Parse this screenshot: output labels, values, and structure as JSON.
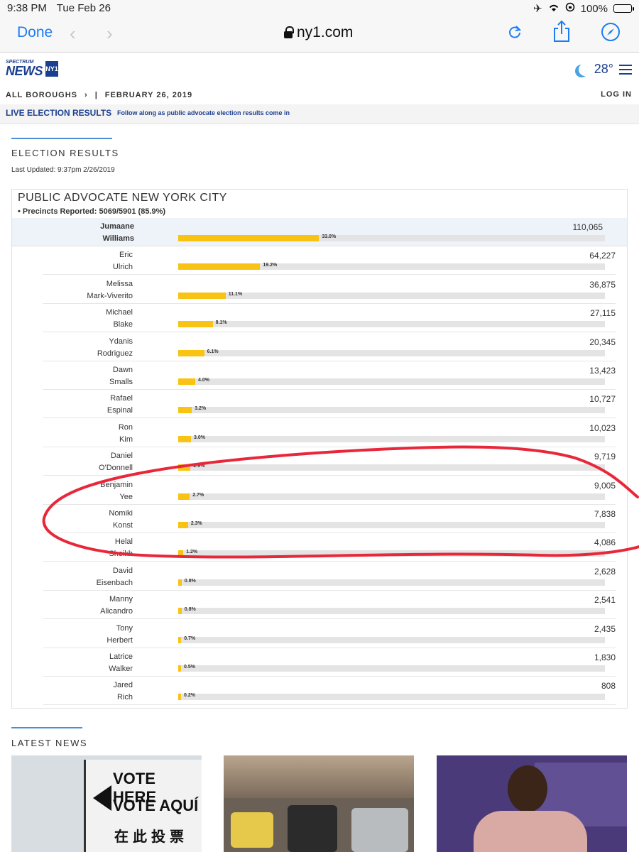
{
  "status_bar": {
    "time": "9:38 PM",
    "date": "Tue Feb 26",
    "battery": "100%"
  },
  "browser": {
    "done": "Done",
    "url": "ny1.com"
  },
  "site": {
    "logo_top": "SPECTRUM",
    "logo_main": "NEWS",
    "logo_badge": "NY1",
    "temperature": "28°",
    "breadcrumb": "ALL BOROUGHS",
    "breadcrumb_sep": "›",
    "breadcrumb_bar": "|",
    "date": "FEBRUARY 26, 2019",
    "login": "LOG IN",
    "live_label": "LIVE ELECTION RESULTS",
    "live_text": "Follow along as public advocate election results come in"
  },
  "election": {
    "section_title": "ELECTION RESULTS",
    "last_updated": "Last Updated: 9:37pm 2/26/2019",
    "race_title": "PUBLIC ADVOCATE NEW YORK CITY",
    "precincts": "• Precincts Reported: 5069/5901 (85.9%)",
    "candidates": [
      {
        "first": "Jumaane",
        "last": "Williams",
        "votes": "110,065",
        "pct": "33.0%",
        "pct_value": 33.0
      },
      {
        "first": "Eric",
        "last": "Ulrich",
        "votes": "64,227",
        "pct": "19.2%",
        "pct_value": 19.2
      },
      {
        "first": "Melissa",
        "last": "Mark-Viverito",
        "votes": "36,875",
        "pct": "11.1%",
        "pct_value": 11.1
      },
      {
        "first": "Michael",
        "last": "Blake",
        "votes": "27,115",
        "pct": "8.1%",
        "pct_value": 8.1
      },
      {
        "first": "Ydanis",
        "last": "Rodriguez",
        "votes": "20,345",
        "pct": "6.1%",
        "pct_value": 6.1
      },
      {
        "first": "Dawn",
        "last": "Smalls",
        "votes": "13,423",
        "pct": "4.0%",
        "pct_value": 4.0
      },
      {
        "first": "Rafael",
        "last": "Espinal",
        "votes": "10,727",
        "pct": "3.2%",
        "pct_value": 3.2
      },
      {
        "first": "Ron",
        "last": "Kim",
        "votes": "10,023",
        "pct": "3.0%",
        "pct_value": 3.0
      },
      {
        "first": "Daniel",
        "last": "O'Donnell",
        "votes": "9,719",
        "pct": "2.9%",
        "pct_value": 2.9
      },
      {
        "first": "Benjamin",
        "last": "Yee",
        "votes": "9,005",
        "pct": "2.7%",
        "pct_value": 2.7
      },
      {
        "first": "Nomiki",
        "last": "Konst",
        "votes": "7,838",
        "pct": "2.3%",
        "pct_value": 2.3
      },
      {
        "first": "Helal",
        "last": "Sheikh",
        "votes": "4,086",
        "pct": "1.2%",
        "pct_value": 1.2
      },
      {
        "first": "David",
        "last": "Eisenbach",
        "votes": "2,628",
        "pct": "0.8%",
        "pct_value": 0.8
      },
      {
        "first": "Manny",
        "last": "Alicandro",
        "votes": "2,541",
        "pct": "0.8%",
        "pct_value": 0.8
      },
      {
        "first": "Tony",
        "last": "Herbert",
        "votes": "2,435",
        "pct": "0.7%",
        "pct_value": 0.7
      },
      {
        "first": "Latrice",
        "last": "Walker",
        "votes": "1,830",
        "pct": "0.5%",
        "pct_value": 0.5
      },
      {
        "first": "Jared",
        "last": "Rich",
        "votes": "808",
        "pct": "0.2%",
        "pct_value": 0.2
      }
    ]
  },
  "news": {
    "section_title": "LATEST NEWS",
    "sign_line1": "VOTE HERE",
    "sign_line2": "VOTE AQUÍ",
    "sign_line3": "在此投票"
  },
  "colors": {
    "brand": "#1b3f8f",
    "bar": "#f8c312",
    "accent_rule": "#4a8fd6",
    "annotation": "#e8283a",
    "ios_blue": "#1e7cf2"
  },
  "icons": [
    "airplane-icon",
    "wifi-icon",
    "rotation-lock-icon",
    "battery-icon",
    "lock-icon",
    "back-icon",
    "forward-icon",
    "reload-icon",
    "share-icon",
    "compass-icon",
    "moon-icon",
    "menu-icon"
  ]
}
